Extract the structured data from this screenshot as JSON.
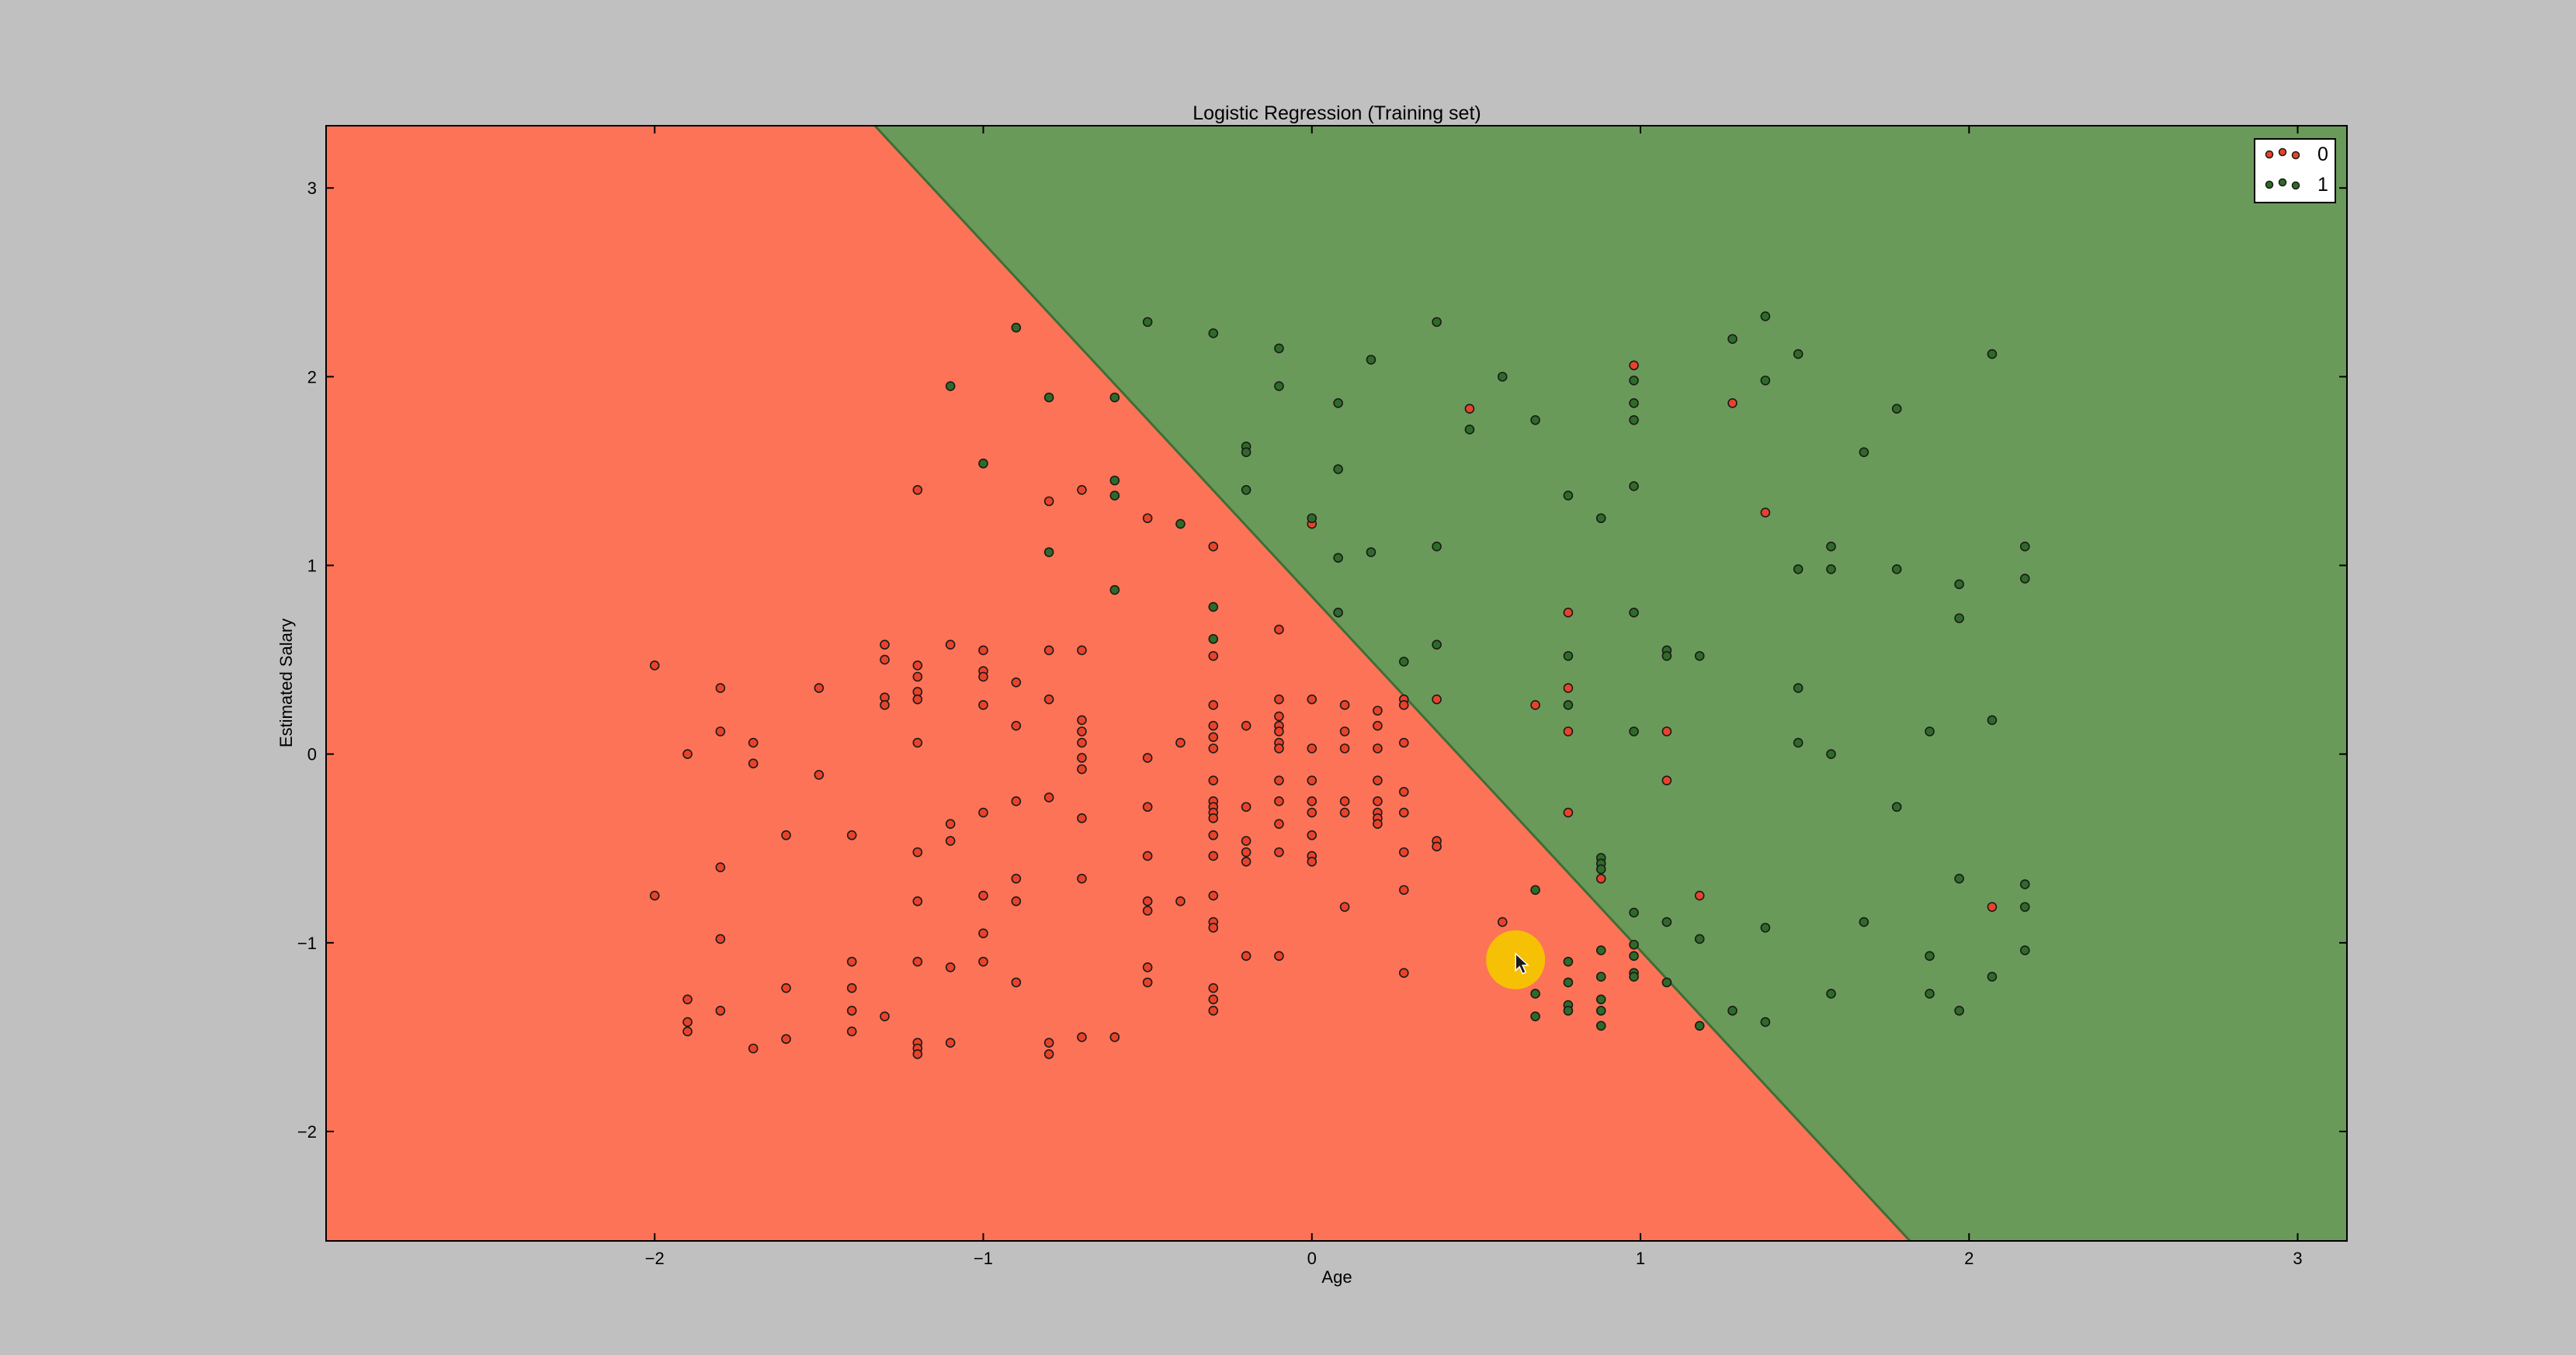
{
  "window": {
    "background": "#c0c0c0"
  },
  "chart_data": {
    "type": "scatter",
    "title": "Logistic Regression (Training set)",
    "xlabel": "Age",
    "ylabel": "Estimated Salary",
    "xlim": [
      -3,
      3.15
    ],
    "ylim": [
      -2.58,
      3.33
    ],
    "xticks": [
      -2,
      -1,
      0,
      1,
      2,
      3
    ],
    "yticks": [
      -2,
      -1,
      0,
      1,
      2,
      3
    ],
    "grid": false,
    "legend_position": "top-right",
    "regions": {
      "boundary_line": {
        "x0": -1.33,
        "y0": 3.33,
        "x1": 1.82,
        "y1": -2.58
      },
      "class_0_color": "#fd7357",
      "class_1_color": "#6a9a5a",
      "boundary_color": "#3f6e36"
    },
    "cursor": {
      "x": 0.62,
      "y": -1.09,
      "highlight_color": "#f5c400"
    },
    "series": [
      {
        "name": "0",
        "color": "#e8432a",
        "points": [
          [
            -2,
            0.47
          ],
          [
            -2,
            -0.75
          ],
          [
            -1.9,
            0.0
          ],
          [
            -1.9,
            -1.3
          ],
          [
            -1.9,
            -1.42
          ],
          [
            -1.9,
            -1.47
          ],
          [
            -1.8,
            0.35
          ],
          [
            -1.8,
            0.12
          ],
          [
            -1.8,
            -0.6
          ],
          [
            -1.8,
            -0.98
          ],
          [
            -1.8,
            -1.36
          ],
          [
            -1.7,
            0.06
          ],
          [
            -1.7,
            -0.05
          ],
          [
            -1.7,
            -1.56
          ],
          [
            -1.6,
            -0.43
          ],
          [
            -1.6,
            -1.24
          ],
          [
            -1.6,
            -1.51
          ],
          [
            -1.5,
            0.35
          ],
          [
            -1.5,
            -0.11
          ],
          [
            -1.4,
            -0.43
          ],
          [
            -1.4,
            -1.1
          ],
          [
            -1.4,
            -1.24
          ],
          [
            -1.4,
            -1.36
          ],
          [
            -1.4,
            -1.47
          ],
          [
            -1.3,
            0.58
          ],
          [
            -1.3,
            0.5
          ],
          [
            -1.3,
            0.3
          ],
          [
            -1.3,
            0.26
          ],
          [
            -1.3,
            -1.39
          ],
          [
            -1.2,
            1.4
          ],
          [
            -1.2,
            0.47
          ],
          [
            -1.2,
            0.41
          ],
          [
            -1.2,
            0.33
          ],
          [
            -1.2,
            0.29
          ],
          [
            -1.2,
            0.06
          ],
          [
            -1.2,
            -0.52
          ],
          [
            -1.2,
            -0.78
          ],
          [
            -1.2,
            -1.1
          ],
          [
            -1.2,
            -1.53
          ],
          [
            -1.2,
            -1.56
          ],
          [
            -1.2,
            -1.59
          ],
          [
            -1.1,
            0.58
          ],
          [
            -1.1,
            -0.37
          ],
          [
            -1.1,
            -0.46
          ],
          [
            -1.1,
            -1.13
          ],
          [
            -1.1,
            -1.53
          ],
          [
            -1.0,
            0.55
          ],
          [
            -1.0,
            0.44
          ],
          [
            -1.0,
            0.41
          ],
          [
            -1.0,
            0.26
          ],
          [
            -1.0,
            -0.31
          ],
          [
            -1.0,
            -0.75
          ],
          [
            -1.0,
            -0.95
          ],
          [
            -1.0,
            -1.1
          ],
          [
            -0.9,
            0.38
          ],
          [
            -0.9,
            0.15
          ],
          [
            -0.9,
            -0.25
          ],
          [
            -0.9,
            -0.66
          ],
          [
            -0.9,
            -0.78
          ],
          [
            -0.9,
            -1.21
          ],
          [
            -0.8,
            1.34
          ],
          [
            -0.8,
            0.55
          ],
          [
            -0.8,
            0.29
          ],
          [
            -0.8,
            -0.23
          ],
          [
            -0.8,
            -1.53
          ],
          [
            -0.8,
            -1.59
          ],
          [
            -0.7,
            1.4
          ],
          [
            -0.7,
            0.55
          ],
          [
            -0.7,
            0.18
          ],
          [
            -0.7,
            0.12
          ],
          [
            -0.7,
            0.06
          ],
          [
            -0.7,
            -0.02
          ],
          [
            -0.7,
            -0.08
          ],
          [
            -0.7,
            -0.34
          ],
          [
            -0.7,
            -0.66
          ],
          [
            -0.7,
            -1.5
          ],
          [
            -0.6,
            -1.5
          ],
          [
            -0.5,
            1.25
          ],
          [
            -0.5,
            -0.02
          ],
          [
            -0.5,
            -0.28
          ],
          [
            -0.5,
            -0.54
          ],
          [
            -0.5,
            -0.78
          ],
          [
            -0.5,
            -0.83
          ],
          [
            -0.5,
            -1.13
          ],
          [
            -0.5,
            -1.21
          ],
          [
            -0.4,
            0.06
          ],
          [
            -0.4,
            -0.78
          ],
          [
            -0.3,
            1.1
          ],
          [
            -0.3,
            0.52
          ],
          [
            -0.3,
            0.26
          ],
          [
            -0.3,
            0.15
          ],
          [
            -0.3,
            0.09
          ],
          [
            -0.3,
            0.03
          ],
          [
            -0.3,
            -0.14
          ],
          [
            -0.3,
            -0.25
          ],
          [
            -0.3,
            -0.28
          ],
          [
            -0.3,
            -0.31
          ],
          [
            -0.3,
            -0.34
          ],
          [
            -0.3,
            -0.43
          ],
          [
            -0.3,
            -0.54
          ],
          [
            -0.3,
            -0.75
          ],
          [
            -0.3,
            -0.89
          ],
          [
            -0.3,
            -0.92
          ],
          [
            -0.3,
            -1.24
          ],
          [
            -0.3,
            -1.3
          ],
          [
            -0.3,
            -1.36
          ],
          [
            -0.2,
            0.15
          ],
          [
            -0.2,
            -0.28
          ],
          [
            -0.2,
            -0.46
          ],
          [
            -0.2,
            -0.52
          ],
          [
            -0.2,
            -0.57
          ],
          [
            -0.2,
            -1.07
          ],
          [
            -0.1,
            0.66
          ],
          [
            -0.1,
            0.29
          ],
          [
            -0.1,
            0.2
          ],
          [
            -0.1,
            0.15
          ],
          [
            -0.1,
            0.12
          ],
          [
            -0.1,
            0.06
          ],
          [
            -0.1,
            0.03
          ],
          [
            -0.1,
            -0.14
          ],
          [
            -0.1,
            -0.25
          ],
          [
            -0.1,
            -0.37
          ],
          [
            -0.1,
            -0.52
          ],
          [
            -0.1,
            -1.07
          ],
          [
            0.0,
            1.22
          ],
          [
            0.0,
            0.29
          ],
          [
            0.0,
            0.03
          ],
          [
            0.0,
            -0.14
          ],
          [
            0.0,
            -0.25
          ],
          [
            0.0,
            -0.31
          ],
          [
            0.0,
            -0.43
          ],
          [
            0.0,
            -0.54
          ],
          [
            0.0,
            -0.57
          ],
          [
            0.1,
            0.26
          ],
          [
            0.1,
            0.12
          ],
          [
            0.1,
            0.03
          ],
          [
            0.1,
            -0.25
          ],
          [
            0.1,
            -0.31
          ],
          [
            0.1,
            -0.81
          ],
          [
            0.2,
            0.23
          ],
          [
            0.2,
            0.15
          ],
          [
            0.2,
            0.03
          ],
          [
            0.2,
            -0.14
          ],
          [
            0.2,
            -0.25
          ],
          [
            0.2,
            -0.31
          ],
          [
            0.2,
            -0.34
          ],
          [
            0.2,
            -0.37
          ],
          [
            0.28,
            0.29
          ],
          [
            0.28,
            0.26
          ],
          [
            0.28,
            0.06
          ],
          [
            0.28,
            -0.2
          ],
          [
            0.28,
            -0.31
          ],
          [
            0.28,
            -0.52
          ],
          [
            0.28,
            -0.72
          ],
          [
            0.28,
            -1.16
          ],
          [
            0.38,
            0.29
          ],
          [
            0.38,
            -0.46
          ],
          [
            0.38,
            -0.49
          ],
          [
            0.48,
            1.83
          ],
          [
            0.58,
            -0.89
          ],
          [
            0.68,
            0.26
          ],
          [
            0.78,
            0.75
          ],
          [
            0.78,
            0.35
          ],
          [
            0.78,
            0.12
          ],
          [
            0.78,
            -0.31
          ],
          [
            0.88,
            -0.66
          ],
          [
            0.98,
            2.06
          ],
          [
            1.08,
            0.12
          ],
          [
            1.08,
            -0.14
          ],
          [
            1.18,
            -0.75
          ],
          [
            1.28,
            1.86
          ],
          [
            1.38,
            1.28
          ],
          [
            2.07,
            -0.81
          ]
        ]
      },
      {
        "name": "1",
        "color": "#2f6b28",
        "points": [
          [
            -1.1,
            1.95
          ],
          [
            -1.0,
            1.54
          ],
          [
            -0.9,
            2.26
          ],
          [
            -0.8,
            1.89
          ],
          [
            -0.8,
            1.07
          ],
          [
            -0.6,
            1.89
          ],
          [
            -0.6,
            1.45
          ],
          [
            -0.6,
            1.37
          ],
          [
            -0.6,
            0.87
          ],
          [
            -0.5,
            2.29
          ],
          [
            -0.4,
            1.22
          ],
          [
            -0.3,
            2.23
          ],
          [
            -0.3,
            0.78
          ],
          [
            -0.3,
            0.61
          ],
          [
            -0.2,
            1.63
          ],
          [
            -0.2,
            1.6
          ],
          [
            -0.2,
            1.4
          ],
          [
            -0.1,
            2.15
          ],
          [
            -0.1,
            1.95
          ],
          [
            0.0,
            1.25
          ],
          [
            0.08,
            1.86
          ],
          [
            0.08,
            1.51
          ],
          [
            0.08,
            1.04
          ],
          [
            0.08,
            0.75
          ],
          [
            0.18,
            2.09
          ],
          [
            0.18,
            1.07
          ],
          [
            0.28,
            0.49
          ],
          [
            0.38,
            2.29
          ],
          [
            0.38,
            1.1
          ],
          [
            0.38,
            0.58
          ],
          [
            0.48,
            1.72
          ],
          [
            0.58,
            2.0
          ],
          [
            0.68,
            1.77
          ],
          [
            0.68,
            -0.72
          ],
          [
            0.68,
            -1.27
          ],
          [
            0.68,
            -1.39
          ],
          [
            0.78,
            1.37
          ],
          [
            0.78,
            0.52
          ],
          [
            0.78,
            0.26
          ],
          [
            0.78,
            -1.1
          ],
          [
            0.78,
            -1.21
          ],
          [
            0.78,
            -1.33
          ],
          [
            0.78,
            -1.36
          ],
          [
            0.88,
            1.25
          ],
          [
            0.88,
            -0.55
          ],
          [
            0.88,
            -0.58
          ],
          [
            0.88,
            -0.61
          ],
          [
            0.88,
            -1.04
          ],
          [
            0.88,
            -1.18
          ],
          [
            0.88,
            -1.3
          ],
          [
            0.88,
            -1.36
          ],
          [
            0.88,
            -1.44
          ],
          [
            0.98,
            1.98
          ],
          [
            0.98,
            1.86
          ],
          [
            0.98,
            1.77
          ],
          [
            0.98,
            1.42
          ],
          [
            0.98,
            0.75
          ],
          [
            0.98,
            0.12
          ],
          [
            0.98,
            -0.84
          ],
          [
            0.98,
            -1.01
          ],
          [
            0.98,
            -1.07
          ],
          [
            0.98,
            -1.16
          ],
          [
            0.98,
            -1.18
          ],
          [
            1.08,
            0.55
          ],
          [
            1.08,
            0.52
          ],
          [
            1.08,
            -0.89
          ],
          [
            1.08,
            -1.21
          ],
          [
            1.18,
            0.52
          ],
          [
            1.18,
            -0.98
          ],
          [
            1.18,
            -1.44
          ],
          [
            1.28,
            2.2
          ],
          [
            1.28,
            -1.36
          ],
          [
            1.38,
            2.32
          ],
          [
            1.38,
            1.98
          ],
          [
            1.38,
            -0.92
          ],
          [
            1.38,
            -1.42
          ],
          [
            1.48,
            2.12
          ],
          [
            1.48,
            0.98
          ],
          [
            1.48,
            0.35
          ],
          [
            1.48,
            0.06
          ],
          [
            1.58,
            1.1
          ],
          [
            1.58,
            0.98
          ],
          [
            1.58,
            -0.0
          ],
          [
            1.58,
            -1.27
          ],
          [
            1.68,
            1.6
          ],
          [
            1.68,
            -0.89
          ],
          [
            1.78,
            1.83
          ],
          [
            1.78,
            0.98
          ],
          [
            1.78,
            -0.28
          ],
          [
            1.88,
            0.12
          ],
          [
            1.88,
            -1.07
          ],
          [
            1.88,
            -1.27
          ],
          [
            1.97,
            0.9
          ],
          [
            1.97,
            0.72
          ],
          [
            1.97,
            -0.66
          ],
          [
            1.97,
            -1.36
          ],
          [
            2.07,
            2.12
          ],
          [
            2.07,
            0.18
          ],
          [
            2.07,
            -1.18
          ],
          [
            2.17,
            1.1
          ],
          [
            2.17,
            0.93
          ],
          [
            2.17,
            -0.69
          ],
          [
            2.17,
            -0.81
          ],
          [
            2.17,
            -1.04
          ]
        ]
      }
    ]
  }
}
